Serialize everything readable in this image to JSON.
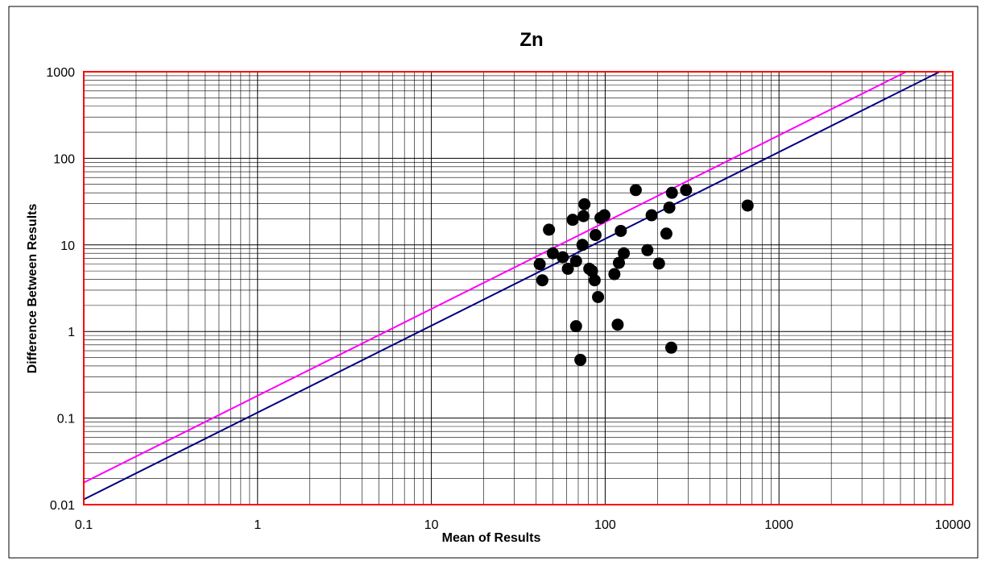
{
  "chart_data": {
    "type": "scatter",
    "title": "Zn",
    "xlabel": "Mean of Results",
    "ylabel": "Difference Between Results",
    "x_scale": "log",
    "y_scale": "log",
    "xlim": [
      0.1,
      10000
    ],
    "ylim": [
      0.01,
      1000
    ],
    "x_ticks": [
      "0.1",
      "1",
      "10",
      "100",
      "1000",
      "10000"
    ],
    "y_ticks": [
      "0.01",
      "0.1",
      "1",
      "10",
      "100",
      "1000"
    ],
    "grid": true,
    "legend": "none",
    "points": [
      {
        "x": 42,
        "y": 6.0
      },
      {
        "x": 43.5,
        "y": 3.9
      },
      {
        "x": 47.5,
        "y": 15
      },
      {
        "x": 50,
        "y": 8.0
      },
      {
        "x": 57,
        "y": 7.2
      },
      {
        "x": 61,
        "y": 5.3
      },
      {
        "x": 65,
        "y": 19.5
      },
      {
        "x": 68,
        "y": 6.5
      },
      {
        "x": 68,
        "y": 1.15
      },
      {
        "x": 72,
        "y": 0.47
      },
      {
        "x": 74,
        "y": 10
      },
      {
        "x": 75,
        "y": 21.5
      },
      {
        "x": 76,
        "y": 29.5
      },
      {
        "x": 81,
        "y": 5.3
      },
      {
        "x": 84,
        "y": 5.0
      },
      {
        "x": 87,
        "y": 3.9
      },
      {
        "x": 88,
        "y": 13
      },
      {
        "x": 91,
        "y": 2.5
      },
      {
        "x": 94,
        "y": 20.5
      },
      {
        "x": 99,
        "y": 22
      },
      {
        "x": 113,
        "y": 4.6
      },
      {
        "x": 118,
        "y": 1.2
      },
      {
        "x": 120,
        "y": 6.2
      },
      {
        "x": 123,
        "y": 14.5
      },
      {
        "x": 128,
        "y": 8.0
      },
      {
        "x": 150,
        "y": 43
      },
      {
        "x": 175,
        "y": 8.7
      },
      {
        "x": 185,
        "y": 22
      },
      {
        "x": 204,
        "y": 6.1
      },
      {
        "x": 225,
        "y": 13.5
      },
      {
        "x": 234,
        "y": 27
      },
      {
        "x": 240,
        "y": 0.65
      },
      {
        "x": 242,
        "y": 40
      },
      {
        "x": 292,
        "y": 43
      },
      {
        "x": 660,
        "y": 28.5
      }
    ],
    "lines": [
      {
        "color": "#000080",
        "points": [
          [
            0.1,
            0.0115
          ],
          [
            8400,
            1000
          ]
        ]
      },
      {
        "color": "#ff00ff",
        "points": [
          [
            0.1,
            0.018
          ],
          [
            5400,
            1000
          ]
        ]
      }
    ],
    "colors": {
      "plot_border": "#ff0000",
      "grid": "#000000",
      "marker": "#000000"
    }
  }
}
